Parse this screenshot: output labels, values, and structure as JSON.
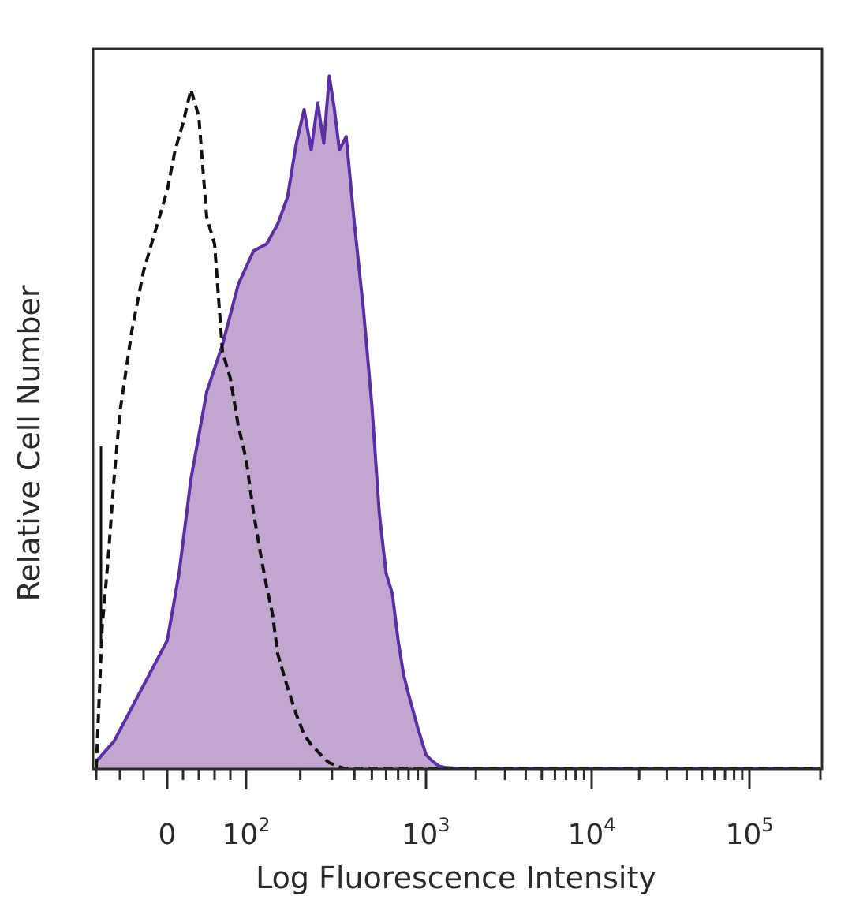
{
  "chart_data": {
    "type": "area",
    "title": "",
    "xlabel": "Log Fluorescence Intensity",
    "ylabel": "Relative Cell Number",
    "x_scale": "biexponential",
    "xlim": [
      -60,
      200000
    ],
    "ylim": [
      0,
      1
    ],
    "grid": false,
    "legend": "none",
    "x_tick_labels": [
      {
        "value": 0,
        "base": "0",
        "exp": ""
      },
      {
        "value": 100,
        "base": "10",
        "exp": "2"
      },
      {
        "value": 1000,
        "base": "10",
        "exp": "3"
      },
      {
        "value": 10000,
        "base": "10",
        "exp": "4"
      },
      {
        "value": 100000,
        "base": "10",
        "exp": "5"
      }
    ],
    "series": [
      {
        "style": "filled-solid",
        "color": "#5a2ea6",
        "fill": "#c3a6cf",
        "x": [
          -60,
          -45,
          -30,
          -15,
          0,
          15,
          30,
          50,
          70,
          90,
          110,
          130,
          150,
          170,
          190,
          210,
          230,
          250,
          270,
          290,
          310,
          330,
          360,
          400,
          450,
          500,
          550,
          600,
          650,
          700,
          750,
          800,
          900,
          1000,
          1100,
          1200,
          1300,
          1500,
          2000,
          5000,
          20000,
          100000,
          200000
        ],
        "y": [
          0.01,
          0.04,
          0.09,
          0.14,
          0.19,
          0.29,
          0.43,
          0.56,
          0.63,
          0.72,
          0.77,
          0.78,
          0.81,
          0.85,
          0.93,
          0.98,
          0.92,
          0.99,
          0.93,
          1.03,
          0.98,
          0.92,
          0.94,
          0.81,
          0.68,
          0.54,
          0.38,
          0.29,
          0.26,
          0.19,
          0.14,
          0.11,
          0.06,
          0.02,
          0.01,
          0.003,
          0.001,
          0.0,
          0.0,
          0.0,
          0.0,
          0.0,
          0.0
        ]
      },
      {
        "style": "dashed-outline",
        "color": "#111111",
        "x": [
          -60,
          -55,
          -50,
          -45,
          -40,
          -30,
          -20,
          -10,
          0,
          10,
          20,
          30,
          40,
          50,
          60,
          70,
          80,
          90,
          100,
          110,
          120,
          130,
          140,
          150,
          170,
          190,
          210,
          230,
          250,
          270,
          290,
          310,
          330,
          350,
          400,
          1000,
          200000
        ],
        "y": [
          0.0,
          0.21,
          0.31,
          0.43,
          0.53,
          0.65,
          0.74,
          0.8,
          0.86,
          0.92,
          0.96,
          1.01,
          0.97,
          0.82,
          0.78,
          0.62,
          0.58,
          0.51,
          0.46,
          0.38,
          0.32,
          0.27,
          0.23,
          0.17,
          0.12,
          0.08,
          0.05,
          0.035,
          0.025,
          0.015,
          0.008,
          0.005,
          0.002,
          0.0,
          0.0,
          0.0,
          0.0
        ]
      }
    ]
  }
}
